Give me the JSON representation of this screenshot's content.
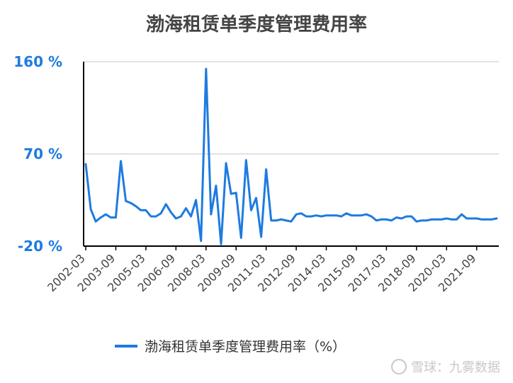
{
  "chart_data": {
    "type": "line",
    "title": "渤海租赁单季度管理费用率",
    "xlabel": "",
    "ylabel": "",
    "y_ticks": [
      "160 %",
      "70 %",
      "-20 %"
    ],
    "ylim": [
      -20,
      160
    ],
    "x_tick_labels": [
      "2002-03",
      "2003-09",
      "2005-03",
      "2006-09",
      "2008-03",
      "2009-09",
      "2011-03",
      "2012-09",
      "2014-03",
      "2015-09",
      "2017-03",
      "2018-09",
      "2020-03",
      "2021-09"
    ],
    "categories": [
      "2002-03",
      "2002-06",
      "2002-09",
      "2002-12",
      "2003-03",
      "2003-06",
      "2003-09",
      "2003-12",
      "2004-03",
      "2004-06",
      "2004-09",
      "2004-12",
      "2005-03",
      "2005-06",
      "2005-09",
      "2005-12",
      "2006-03",
      "2006-06",
      "2006-09",
      "2006-12",
      "2007-03",
      "2007-06",
      "2007-09",
      "2007-12",
      "2008-03",
      "2008-06",
      "2008-09",
      "2008-12",
      "2009-03",
      "2009-06",
      "2009-09",
      "2009-12",
      "2010-03",
      "2010-06",
      "2010-09",
      "2010-12",
      "2011-03",
      "2011-06",
      "2011-09",
      "2011-12",
      "2012-03",
      "2012-06",
      "2012-09",
      "2012-12",
      "2013-03",
      "2013-06",
      "2013-09",
      "2013-12",
      "2014-03",
      "2014-06",
      "2014-09",
      "2014-12",
      "2015-03",
      "2015-06",
      "2015-09",
      "2015-12",
      "2016-03",
      "2016-06",
      "2016-09",
      "2016-12",
      "2017-03",
      "2017-06",
      "2017-09",
      "2017-12",
      "2018-03",
      "2018-06",
      "2018-09",
      "2018-12",
      "2019-03",
      "2019-06",
      "2019-09",
      "2019-12",
      "2020-03",
      "2020-06",
      "2020-09",
      "2020-12",
      "2021-03",
      "2021-06",
      "2021-09",
      "2021-12",
      "2022-03",
      "2022-06",
      "2022-09"
    ],
    "series": [
      {
        "name": "渤海租赁单季度管理费用率（%）",
        "color": "#1e7be0",
        "values": [
          60,
          16,
          4,
          8,
          11,
          8,
          8,
          63,
          24,
          22,
          19,
          15,
          15,
          9,
          9,
          12,
          21,
          13,
          7,
          9,
          17,
          9,
          25,
          -15,
          153,
          11,
          39,
          -18,
          61,
          31,
          32,
          -12,
          64,
          15,
          27,
          -11,
          55,
          5,
          5,
          6,
          5,
          4,
          11,
          12,
          9,
          9,
          10,
          9,
          10,
          10,
          10,
          9,
          12,
          10,
          10,
          10,
          11,
          9,
          5,
          6,
          6,
          5,
          8,
          7,
          9,
          9,
          4,
          5,
          5,
          6,
          6,
          6,
          7,
          6,
          6,
          11,
          7,
          7,
          7,
          6,
          6,
          6,
          7
        ]
      }
    ],
    "grid": true,
    "legend_position": "bottom"
  },
  "legend": {
    "label": "渤海租赁单季度管理费用率（%）"
  },
  "watermark": {
    "text": "雪球：九雾数据"
  }
}
